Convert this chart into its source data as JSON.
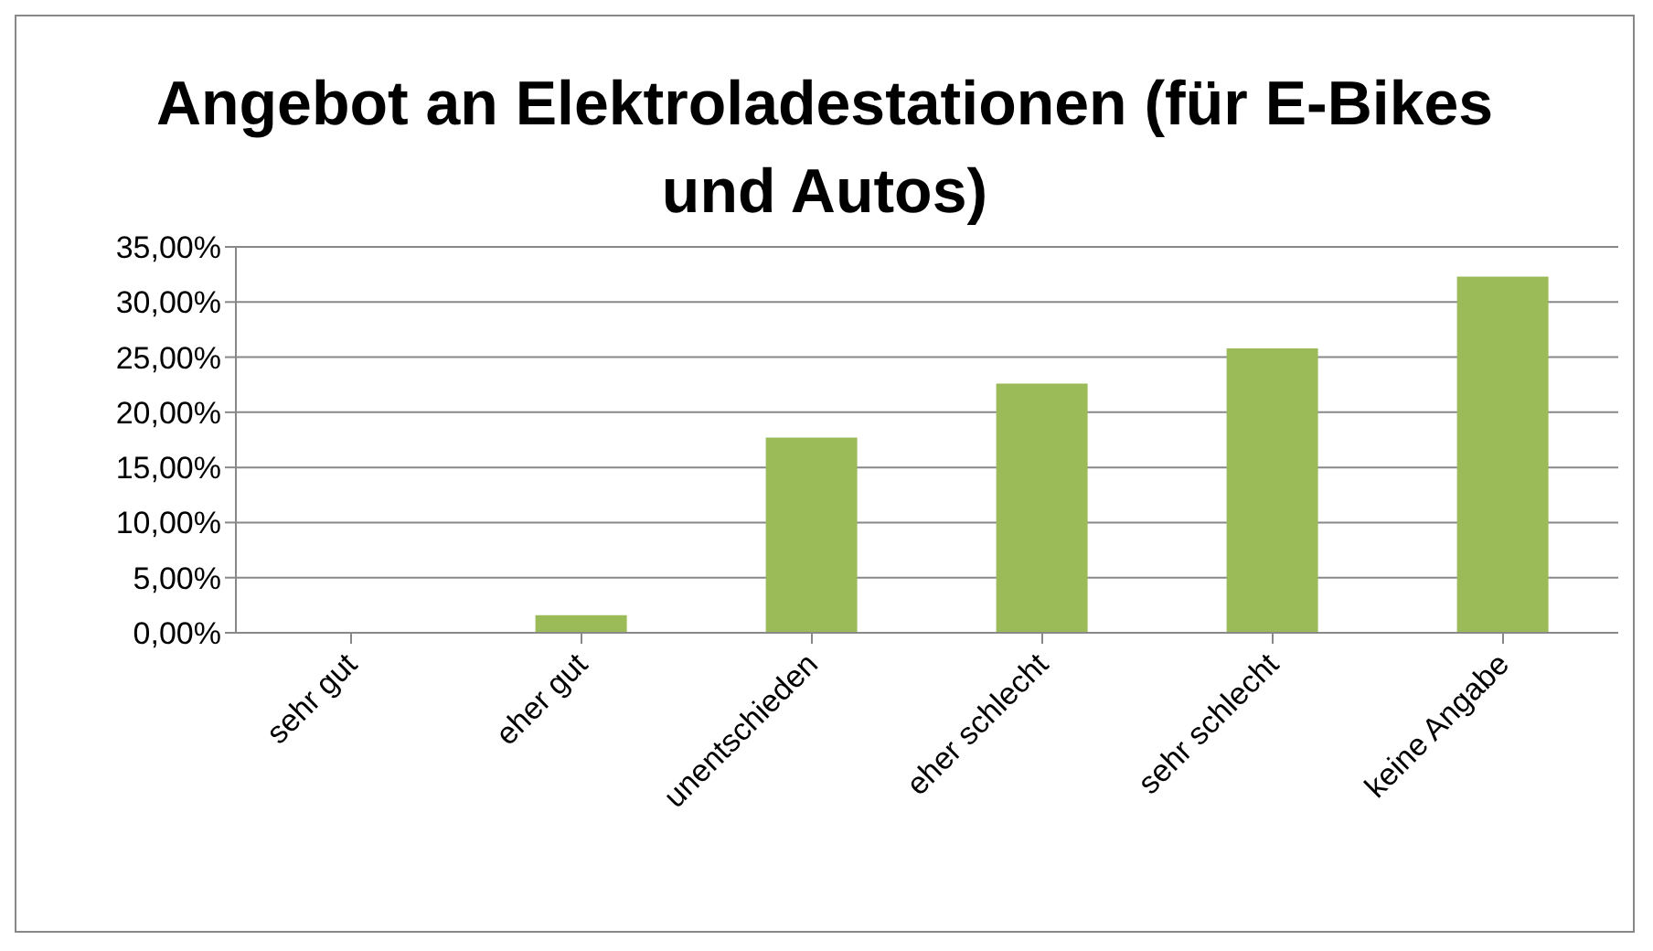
{
  "chart_data": {
    "type": "bar",
    "title": "Angebot an Elektroladestationen (für E-Bikes und Autos)",
    "categories": [
      "sehr gut",
      "eher gut",
      "unentschieden",
      "eher schlecht",
      "sehr schlecht",
      "keine Angabe"
    ],
    "values": [
      0,
      1.6,
      17.7,
      22.6,
      25.8,
      32.3
    ],
    "color": "#9bbb59",
    "ylim": [
      0,
      35
    ],
    "yticks": [
      {
        "value": 0,
        "label": "0,00%"
      },
      {
        "value": 5,
        "label": "5,00%"
      },
      {
        "value": 10,
        "label": "10,00%"
      },
      {
        "value": 15,
        "label": "15,00%"
      },
      {
        "value": 20,
        "label": "20,00%"
      },
      {
        "value": 25,
        "label": "25,00%"
      },
      {
        "value": 30,
        "label": "30,00%"
      },
      {
        "value": 35,
        "label": "35,00%"
      }
    ],
    "grid": "y",
    "legend": false
  }
}
